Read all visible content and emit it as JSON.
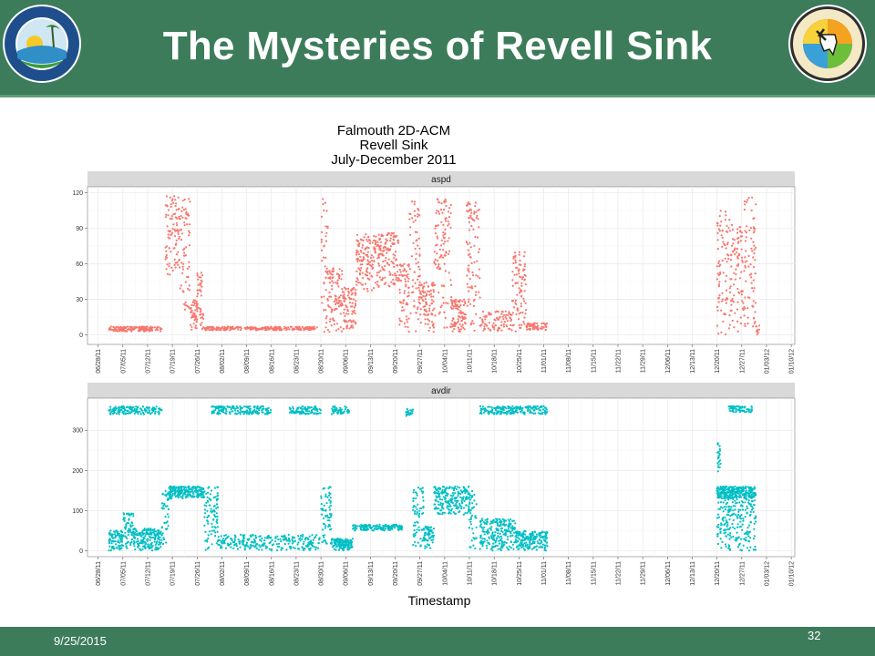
{
  "slide": {
    "title": "The Mysteries of Revell Sink",
    "date": "9/25/2015",
    "page_number": "32",
    "logo_left": {
      "icon": "fdep-seal-icon",
      "text": "Florida Department of Environmental Protection"
    },
    "logo_right": {
      "icon": "fgs-seal-icon",
      "text": "FLORIDA GEOLOGICAL SURVEY",
      "est": "EST. 1907"
    }
  },
  "colors": {
    "header_bg": "#3c7c5a",
    "aspd_points": "#f8766d",
    "avdir_points": "#00bfc4",
    "strip_bg": "#d9d9d9",
    "grid": "#ebebeb"
  },
  "chart_data": {
    "type": "scatter",
    "title": [
      "Falmouth 2D-ACM",
      "Revell Sink",
      "July-December 2011"
    ],
    "xlabel": "Timestamp",
    "x_ticks": [
      "06/28/11",
      "07/05/11",
      "07/12/11",
      "07/19/11",
      "07/26/11",
      "08/02/11",
      "08/09/11",
      "08/16/11",
      "08/23/11",
      "08/30/11",
      "09/06/11",
      "09/13/11",
      "09/20/11",
      "09/27/11",
      "10/04/11",
      "10/11/11",
      "10/18/11",
      "10/25/11",
      "11/01/11",
      "11/08/11",
      "11/15/11",
      "11/22/11",
      "11/29/11",
      "12/06/11",
      "12/13/11",
      "12/20/11",
      "12/27/11",
      "01/03/12",
      "01/10/12"
    ],
    "xlim": [
      "2011-06-25",
      "2012-01-11"
    ],
    "grid": true,
    "legend": "none",
    "panels": [
      {
        "name": "aspd",
        "ylim": [
          -8,
          125
        ],
        "y_ticks": [
          0,
          30,
          60,
          90,
          120
        ],
        "segments": [
          {
            "start": "2011-07-01",
            "end": "2011-07-16",
            "low": 3,
            "high": 7
          },
          {
            "start": "2011-07-17",
            "end": "2011-07-21",
            "low": 50,
            "high": 118
          },
          {
            "start": "2011-07-21",
            "end": "2011-07-24",
            "low": 20,
            "high": 115
          },
          {
            "start": "2011-07-24",
            "end": "2011-07-26",
            "low": 3,
            "high": 30
          },
          {
            "start": "2011-07-26",
            "end": "2011-07-28",
            "low": 5,
            "high": 55
          },
          {
            "start": "2011-07-28",
            "end": "2011-08-29",
            "low": 4,
            "high": 7
          },
          {
            "start": "2011-08-30",
            "end": "2011-09-01",
            "low": 2,
            "high": 115
          },
          {
            "start": "2011-09-01",
            "end": "2011-09-05",
            "low": 2,
            "high": 60
          },
          {
            "start": "2011-09-05",
            "end": "2011-09-09",
            "low": 5,
            "high": 40
          },
          {
            "start": "2011-09-09",
            "end": "2011-09-15",
            "low": 35,
            "high": 85
          },
          {
            "start": "2011-09-15",
            "end": "2011-09-21",
            "low": 40,
            "high": 86
          },
          {
            "start": "2011-09-21",
            "end": "2011-09-24",
            "low": 2,
            "high": 60
          },
          {
            "start": "2011-09-24",
            "end": "2011-09-27",
            "low": 2,
            "high": 115
          },
          {
            "start": "2011-09-27",
            "end": "2011-10-01",
            "low": 2,
            "high": 45
          },
          {
            "start": "2011-10-01",
            "end": "2011-10-06",
            "low": 5,
            "high": 115
          },
          {
            "start": "2011-10-06",
            "end": "2011-10-10",
            "low": 2,
            "high": 30
          },
          {
            "start": "2011-10-10",
            "end": "2011-10-14",
            "low": 2,
            "high": 115
          },
          {
            "start": "2011-10-14",
            "end": "2011-10-23",
            "low": 3,
            "high": 20
          },
          {
            "start": "2011-10-23",
            "end": "2011-10-27",
            "low": 2,
            "high": 70
          },
          {
            "start": "2011-10-27",
            "end": "2011-11-02",
            "low": 4,
            "high": 10
          },
          {
            "start": "2011-12-20",
            "end": "2011-12-24",
            "low": 0,
            "high": 105
          },
          {
            "start": "2011-12-24",
            "end": "2011-12-27",
            "low": 0,
            "high": 95
          },
          {
            "start": "2011-12-27",
            "end": "2011-12-31",
            "low": 0,
            "high": 116
          },
          {
            "start": "2011-12-31",
            "end": "2012-01-01",
            "low": 0,
            "high": 8
          }
        ]
      },
      {
        "name": "avdir",
        "ylim": [
          -15,
          380
        ],
        "y_ticks": [
          0,
          100,
          200,
          300
        ],
        "segments": [
          {
            "start": "2011-07-01",
            "end": "2011-07-16",
            "low": 340,
            "high": 360
          },
          {
            "start": "2011-07-01",
            "end": "2011-07-05",
            "low": 0,
            "high": 50
          },
          {
            "start": "2011-07-05",
            "end": "2011-07-08",
            "low": 5,
            "high": 95
          },
          {
            "start": "2011-07-08",
            "end": "2011-07-16",
            "low": 0,
            "high": 55
          },
          {
            "start": "2011-07-16",
            "end": "2011-07-18",
            "low": 10,
            "high": 150
          },
          {
            "start": "2011-07-18",
            "end": "2011-07-28",
            "low": 130,
            "high": 160
          },
          {
            "start": "2011-07-28",
            "end": "2011-08-01",
            "low": 0,
            "high": 160
          },
          {
            "start": "2011-07-30",
            "end": "2011-08-16",
            "low": 340,
            "high": 360
          },
          {
            "start": "2011-08-01",
            "end": "2011-08-30",
            "low": 0,
            "high": 40
          },
          {
            "start": "2011-08-21",
            "end": "2011-08-30",
            "low": 340,
            "high": 360
          },
          {
            "start": "2011-08-30",
            "end": "2011-09-02",
            "low": 10,
            "high": 160
          },
          {
            "start": "2011-09-02",
            "end": "2011-09-07",
            "low": 340,
            "high": 360
          },
          {
            "start": "2011-09-02",
            "end": "2011-09-08",
            "low": 0,
            "high": 30
          },
          {
            "start": "2011-09-08",
            "end": "2011-09-22",
            "low": 50,
            "high": 65
          },
          {
            "start": "2011-09-23",
            "end": "2011-09-25",
            "low": 335,
            "high": 355
          },
          {
            "start": "2011-09-25",
            "end": "2011-09-28",
            "low": 10,
            "high": 160
          },
          {
            "start": "2011-09-28",
            "end": "2011-10-01",
            "low": 0,
            "high": 60
          },
          {
            "start": "2011-10-01",
            "end": "2011-10-11",
            "low": 90,
            "high": 160
          },
          {
            "start": "2011-10-11",
            "end": "2011-10-13",
            "low": 0,
            "high": 150
          },
          {
            "start": "2011-10-14",
            "end": "2011-11-02",
            "low": 340,
            "high": 360
          },
          {
            "start": "2011-10-14",
            "end": "2011-10-24",
            "low": 0,
            "high": 80
          },
          {
            "start": "2011-10-24",
            "end": "2011-11-02",
            "low": 0,
            "high": 50
          },
          {
            "start": "2011-12-20",
            "end": "2011-12-21",
            "low": 180,
            "high": 270
          },
          {
            "start": "2011-12-20",
            "end": "2011-12-31",
            "low": 130,
            "high": 160
          },
          {
            "start": "2011-12-20",
            "end": "2011-12-31",
            "low": 0,
            "high": 140
          },
          {
            "start": "2011-12-23",
            "end": "2011-12-30",
            "low": 345,
            "high": 360
          }
        ]
      }
    ]
  }
}
